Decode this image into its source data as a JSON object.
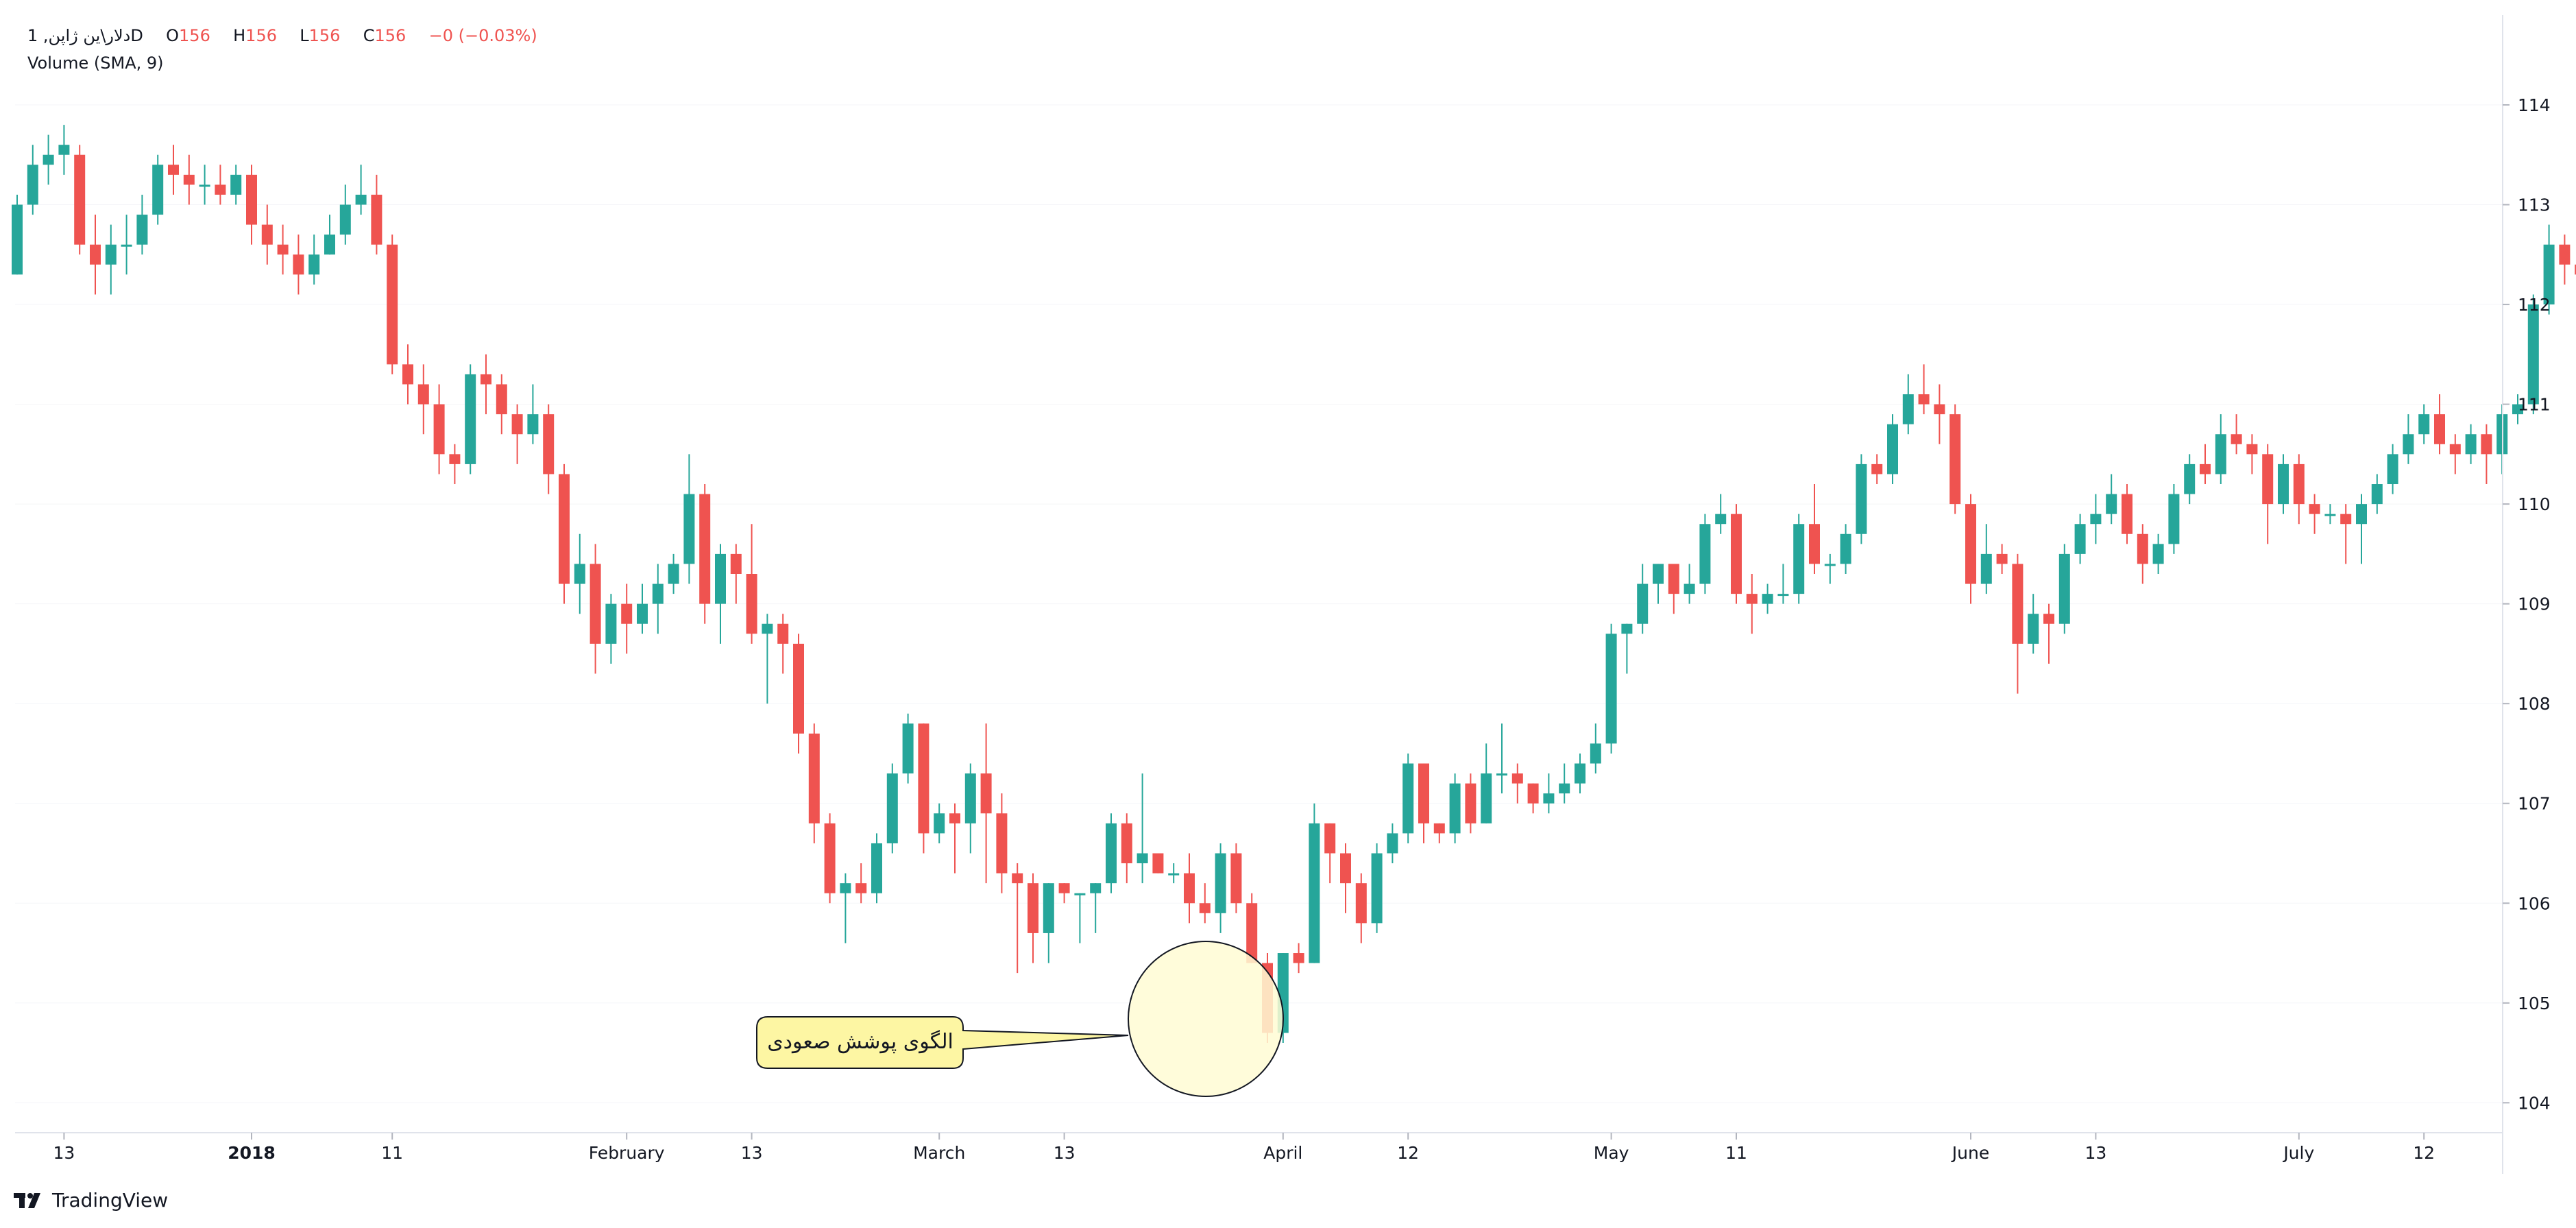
{
  "legend": {
    "symbol": "1 ,دلار\\ین ژاپنD",
    "o_label": "O",
    "o": "156",
    "h_label": "H",
    "h": "156",
    "l_label": "L",
    "l": "156",
    "c_label": "C",
    "c": "156",
    "change": "−0 (−0.03%)",
    "indicator": "Volume (SMA, 9)"
  },
  "annotation": {
    "text": "الگوی پوشش صعودی"
  },
  "branding": {
    "name": "TradingView"
  },
  "colors": {
    "up": "#26a69a",
    "down": "#ef5350",
    "grid": "#e0e3eb",
    "text": "#131722",
    "callout_fill": "#fdf6a3",
    "circle_fill": "#fffbd3"
  },
  "chart_data": {
    "type": "candlestick",
    "y_axis": {
      "ticks": [
        104,
        105,
        106,
        107,
        108,
        109,
        110,
        111,
        112,
        113,
        114
      ],
      "range": [
        103.7,
        114.9
      ],
      "side": "right"
    },
    "x_axis": {
      "ticks": [
        {
          "label": "13",
          "index": 3,
          "bold": false
        },
        {
          "label": "2018",
          "index": 15,
          "bold": true
        },
        {
          "label": "11",
          "index": 24,
          "bold": false
        },
        {
          "label": "February",
          "index": 39,
          "bold": false
        },
        {
          "label": "13",
          "index": 47,
          "bold": false
        },
        {
          "label": "March",
          "index": 59,
          "bold": false
        },
        {
          "label": "13",
          "index": 67,
          "bold": false
        },
        {
          "label": "April",
          "index": 81,
          "bold": false
        },
        {
          "label": "12",
          "index": 89,
          "bold": false
        },
        {
          "label": "May",
          "index": 102,
          "bold": false
        },
        {
          "label": "11",
          "index": 110,
          "bold": false
        },
        {
          "label": "June",
          "index": 125,
          "bold": false
        },
        {
          "label": "13",
          "index": 133,
          "bold": false
        },
        {
          "label": "July",
          "index": 146,
          "bold": false
        },
        {
          "label": "12",
          "index": 154,
          "bold": false
        }
      ]
    },
    "candles": [
      [
        112.3,
        113.0,
        112.3,
        113.1
      ],
      [
        113.0,
        113.4,
        112.9,
        113.6
      ],
      [
        113.4,
        113.5,
        113.2,
        113.7
      ],
      [
        113.5,
        113.6,
        113.3,
        113.8
      ],
      [
        113.5,
        112.6,
        112.5,
        113.6
      ],
      [
        112.6,
        112.4,
        112.1,
        112.9
      ],
      [
        112.4,
        112.6,
        112.1,
        112.8
      ],
      [
        112.6,
        112.6,
        112.3,
        112.9
      ],
      [
        112.6,
        112.9,
        112.5,
        113.1
      ],
      [
        112.9,
        113.4,
        112.8,
        113.5
      ],
      [
        113.4,
        113.3,
        113.1,
        113.6
      ],
      [
        113.3,
        113.2,
        113.0,
        113.5
      ],
      [
        113.2,
        113.2,
        113.0,
        113.4
      ],
      [
        113.2,
        113.1,
        113.0,
        113.4
      ],
      [
        113.1,
        113.3,
        113.0,
        113.4
      ],
      [
        113.3,
        112.8,
        112.6,
        113.4
      ],
      [
        112.8,
        112.6,
        112.4,
        113.0
      ],
      [
        112.6,
        112.5,
        112.3,
        112.8
      ],
      [
        112.5,
        112.3,
        112.1,
        112.7
      ],
      [
        112.3,
        112.5,
        112.2,
        112.7
      ],
      [
        112.5,
        112.7,
        112.5,
        112.9
      ],
      [
        112.7,
        113.0,
        112.6,
        113.2
      ],
      [
        113.0,
        113.1,
        112.9,
        113.4
      ],
      [
        113.1,
        112.6,
        112.5,
        113.3
      ],
      [
        112.6,
        111.4,
        111.3,
        112.7
      ],
      [
        111.4,
        111.2,
        111.0,
        111.6
      ],
      [
        111.2,
        111.0,
        110.7,
        111.4
      ],
      [
        111.0,
        110.5,
        110.3,
        111.2
      ],
      [
        110.5,
        110.4,
        110.2,
        110.6
      ],
      [
        110.4,
        111.3,
        110.3,
        111.4
      ],
      [
        111.3,
        111.2,
        110.9,
        111.5
      ],
      [
        111.2,
        110.9,
        110.7,
        111.3
      ],
      [
        110.9,
        110.7,
        110.4,
        111.0
      ],
      [
        110.7,
        110.9,
        110.6,
        111.2
      ],
      [
        110.9,
        110.3,
        110.1,
        111.0
      ],
      [
        110.3,
        109.2,
        109.0,
        110.4
      ],
      [
        109.2,
        109.4,
        108.9,
        109.7
      ],
      [
        109.4,
        108.6,
        108.3,
        109.6
      ],
      [
        108.6,
        109.0,
        108.4,
        109.1
      ],
      [
        109.0,
        108.8,
        108.5,
        109.2
      ],
      [
        108.8,
        109.0,
        108.7,
        109.2
      ],
      [
        109.0,
        109.2,
        108.7,
        109.4
      ],
      [
        109.2,
        109.4,
        109.1,
        109.5
      ],
      [
        109.4,
        110.1,
        109.2,
        110.5
      ],
      [
        110.1,
        109.0,
        108.8,
        110.2
      ],
      [
        109.0,
        109.5,
        108.6,
        109.6
      ],
      [
        109.5,
        109.3,
        109.0,
        109.6
      ],
      [
        109.3,
        108.7,
        108.6,
        109.8
      ],
      [
        108.7,
        108.8,
        108.0,
        108.9
      ],
      [
        108.8,
        108.6,
        108.3,
        108.9
      ],
      [
        108.6,
        107.7,
        107.5,
        108.7
      ],
      [
        107.7,
        106.8,
        106.6,
        107.8
      ],
      [
        106.8,
        106.1,
        106.0,
        106.9
      ],
      [
        106.1,
        106.2,
        105.6,
        106.3
      ],
      [
        106.2,
        106.1,
        106.0,
        106.4
      ],
      [
        106.1,
        106.6,
        106.0,
        106.7
      ],
      [
        106.6,
        107.3,
        106.5,
        107.4
      ],
      [
        107.3,
        107.8,
        107.2,
        107.9
      ],
      [
        107.8,
        106.7,
        106.5,
        107.8
      ],
      [
        106.7,
        106.9,
        106.6,
        107.0
      ],
      [
        106.9,
        106.8,
        106.3,
        107.0
      ],
      [
        106.8,
        107.3,
        106.5,
        107.4
      ],
      [
        107.3,
        106.9,
        106.2,
        107.8
      ],
      [
        106.9,
        106.3,
        106.1,
        107.1
      ],
      [
        106.3,
        106.2,
        105.3,
        106.4
      ],
      [
        106.2,
        105.7,
        105.4,
        106.3
      ],
      [
        105.7,
        106.2,
        105.4,
        106.2
      ],
      [
        106.2,
        106.1,
        106.0,
        106.2
      ],
      [
        106.1,
        106.1,
        105.6,
        106.1
      ],
      [
        106.1,
        106.2,
        105.7,
        106.2
      ],
      [
        106.2,
        106.8,
        106.1,
        106.9
      ],
      [
        106.8,
        106.4,
        106.2,
        106.9
      ],
      [
        106.4,
        106.5,
        106.2,
        107.3
      ],
      [
        106.5,
        106.3,
        106.3,
        106.5
      ],
      [
        106.3,
        106.3,
        106.2,
        106.4
      ],
      [
        106.3,
        106.0,
        105.8,
        106.5
      ],
      [
        106.0,
        105.9,
        105.8,
        106.2
      ],
      [
        105.9,
        106.5,
        105.7,
        106.6
      ],
      [
        106.5,
        106.0,
        105.9,
        106.6
      ],
      [
        106.0,
        105.4,
        105.4,
        106.1
      ],
      [
        105.4,
        104.7,
        104.6,
        105.5
      ],
      [
        104.7,
        105.5,
        104.6,
        105.5
      ],
      [
        105.5,
        105.4,
        105.3,
        105.6
      ],
      [
        105.4,
        106.8,
        105.4,
        107.0
      ],
      [
        106.8,
        106.5,
        106.2,
        106.8
      ],
      [
        106.5,
        106.2,
        105.9,
        106.6
      ],
      [
        106.2,
        105.8,
        105.6,
        106.3
      ],
      [
        105.8,
        106.5,
        105.7,
        106.6
      ],
      [
        106.5,
        106.7,
        106.4,
        106.8
      ],
      [
        106.7,
        107.4,
        106.6,
        107.5
      ],
      [
        107.4,
        106.8,
        106.6,
        107.4
      ],
      [
        106.8,
        106.7,
        106.6,
        106.8
      ],
      [
        106.7,
        107.2,
        106.6,
        107.3
      ],
      [
        107.2,
        106.8,
        106.7,
        107.3
      ],
      [
        106.8,
        107.3,
        106.8,
        107.6
      ],
      [
        107.3,
        107.3,
        107.1,
        107.8
      ],
      [
        107.3,
        107.2,
        107.0,
        107.4
      ],
      [
        107.2,
        107.0,
        106.9,
        107.2
      ],
      [
        107.0,
        107.1,
        106.9,
        107.3
      ],
      [
        107.1,
        107.2,
        107.0,
        107.4
      ],
      [
        107.2,
        107.4,
        107.1,
        107.5
      ],
      [
        107.4,
        107.6,
        107.3,
        107.8
      ],
      [
        107.6,
        108.7,
        107.5,
        108.8
      ],
      [
        108.7,
        108.8,
        108.3,
        108.8
      ],
      [
        108.8,
        109.2,
        108.7,
        109.4
      ],
      [
        109.2,
        109.4,
        109.0,
        109.4
      ],
      [
        109.4,
        109.1,
        108.9,
        109.4
      ],
      [
        109.1,
        109.2,
        109.0,
        109.4
      ],
      [
        109.2,
        109.8,
        109.1,
        109.9
      ],
      [
        109.8,
        109.9,
        109.7,
        110.1
      ],
      [
        109.9,
        109.1,
        109.0,
        110.0
      ],
      [
        109.1,
        109.0,
        108.7,
        109.3
      ],
      [
        109.0,
        109.1,
        108.9,
        109.2
      ],
      [
        109.1,
        109.1,
        109.0,
        109.4
      ],
      [
        109.1,
        109.8,
        109.0,
        109.9
      ],
      [
        109.8,
        109.4,
        109.3,
        110.2
      ],
      [
        109.4,
        109.4,
        109.2,
        109.5
      ],
      [
        109.4,
        109.7,
        109.3,
        109.8
      ],
      [
        109.7,
        110.4,
        109.6,
        110.5
      ],
      [
        110.4,
        110.3,
        110.2,
        110.5
      ],
      [
        110.3,
        110.8,
        110.2,
        110.9
      ],
      [
        110.8,
        111.1,
        110.7,
        111.3
      ],
      [
        111.1,
        111.0,
        110.9,
        111.4
      ],
      [
        111.0,
        110.9,
        110.6,
        111.2
      ],
      [
        110.9,
        110.0,
        109.9,
        111.0
      ],
      [
        110.0,
        109.2,
        109.0,
        110.1
      ],
      [
        109.2,
        109.5,
        109.1,
        109.8
      ],
      [
        109.5,
        109.4,
        109.3,
        109.6
      ],
      [
        109.4,
        108.6,
        108.1,
        109.5
      ],
      [
        108.6,
        108.9,
        108.5,
        109.1
      ],
      [
        108.9,
        108.8,
        108.4,
        109.0
      ],
      [
        108.8,
        109.5,
        108.7,
        109.6
      ],
      [
        109.5,
        109.8,
        109.4,
        109.9
      ],
      [
        109.8,
        109.9,
        109.6,
        110.1
      ],
      [
        109.9,
        110.1,
        109.8,
        110.3
      ],
      [
        110.1,
        109.7,
        109.6,
        110.2
      ],
      [
        109.7,
        109.4,
        109.2,
        109.8
      ],
      [
        109.4,
        109.6,
        109.3,
        109.7
      ],
      [
        109.6,
        110.1,
        109.5,
        110.2
      ],
      [
        110.1,
        110.4,
        110.0,
        110.5
      ],
      [
        110.4,
        110.3,
        110.2,
        110.6
      ],
      [
        110.3,
        110.7,
        110.2,
        110.9
      ],
      [
        110.7,
        110.6,
        110.5,
        110.9
      ],
      [
        110.6,
        110.5,
        110.3,
        110.7
      ],
      [
        110.5,
        110.0,
        109.6,
        110.6
      ],
      [
        110.0,
        110.4,
        109.9,
        110.5
      ],
      [
        110.4,
        110.0,
        109.8,
        110.5
      ],
      [
        110.0,
        109.9,
        109.7,
        110.1
      ],
      [
        109.9,
        109.9,
        109.8,
        110.0
      ],
      [
        109.9,
        109.8,
        109.4,
        110.0
      ],
      [
        109.8,
        110.0,
        109.4,
        110.1
      ],
      [
        110.0,
        110.2,
        109.9,
        110.3
      ],
      [
        110.2,
        110.5,
        110.1,
        110.6
      ],
      [
        110.5,
        110.7,
        110.4,
        110.9
      ],
      [
        110.7,
        110.9,
        110.6,
        111.0
      ],
      [
        110.9,
        110.6,
        110.5,
        111.1
      ],
      [
        110.6,
        110.5,
        110.3,
        110.7
      ],
      [
        110.5,
        110.7,
        110.4,
        110.8
      ],
      [
        110.7,
        110.5,
        110.2,
        110.8
      ],
      [
        110.5,
        110.9,
        110.3,
        111.0
      ],
      [
        110.9,
        111.0,
        110.8,
        111.1
      ],
      [
        111.0,
        112.0,
        110.9,
        112.1
      ],
      [
        112.0,
        112.6,
        111.9,
        112.8
      ],
      [
        112.6,
        112.4,
        112.2,
        112.7
      ],
      [
        112.4,
        112.3,
        112.1,
        112.6
      ],
      [
        112.3,
        112.4,
        112.2,
        112.5
      ],
      [
        112.4,
        113.0,
        112.3,
        113.1
      ]
    ]
  }
}
